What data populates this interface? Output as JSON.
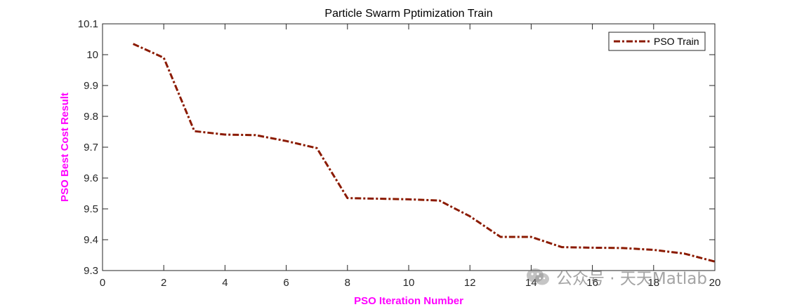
{
  "chart_data": {
    "type": "line",
    "title": "Particle Swarm Pptimization Train",
    "xlabel": "PSO Iteration Number",
    "ylabel": "PSO Best Cost Result",
    "xlim": [
      0,
      20
    ],
    "ylim": [
      9.3,
      10.1
    ],
    "xticks": [
      0,
      2,
      4,
      6,
      8,
      10,
      12,
      14,
      16,
      18,
      20
    ],
    "xtick_labels": [
      "0",
      "2",
      "4",
      "6",
      "8",
      "10",
      "12",
      "14",
      "16",
      "18",
      "20"
    ],
    "yticks": [
      9.3,
      9.4,
      9.5,
      9.6,
      9.7,
      9.8,
      9.9,
      10.0,
      10.1
    ],
    "ytick_labels": [
      "9.3",
      "9.4",
      "9.5",
      "9.6",
      "9.7",
      "9.8",
      "9.9",
      "10",
      "10.1"
    ],
    "grid": false,
    "legend_position": "top-right",
    "series": [
      {
        "name": "PSO Train",
        "line_style": "dash-dot",
        "color": "#8B1A00",
        "x": [
          1,
          2,
          3,
          4,
          5,
          6,
          7,
          8,
          9,
          10,
          11,
          12,
          13,
          14,
          15,
          16,
          17,
          18,
          19,
          20
        ],
        "y": [
          10.035,
          9.99,
          9.752,
          9.741,
          9.739,
          9.72,
          9.697,
          9.535,
          9.533,
          9.531,
          9.527,
          9.476,
          9.409,
          9.409,
          9.376,
          9.374,
          9.373,
          9.367,
          9.355,
          9.329
        ]
      }
    ]
  },
  "colors": {
    "axis": "#262626",
    "axis_label": "#FF00FF",
    "series": "#8B1A00"
  },
  "watermark": {
    "text": "公众号 · 天天Matlab"
  }
}
